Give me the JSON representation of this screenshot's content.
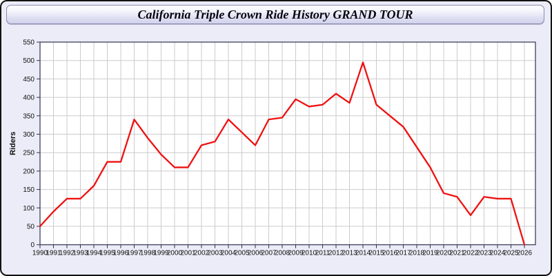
{
  "window": {
    "title": "California Triple Crown Ride History GRAND TOUR"
  },
  "colors": {
    "page_background": "#ECECF8",
    "plot_background": "#FFFFFF",
    "plot_border": "#30304E",
    "gridline": "#CBCBCB",
    "tick_text": "#101010",
    "line": "#EE1111",
    "header_border": "#8A8AB0"
  },
  "chart_data": {
    "type": "line",
    "title": "California Triple Crown Ride History GRAND TOUR",
    "xlabel": "",
    "ylabel": "Riders",
    "ylim": [
      0,
      550
    ],
    "ytick_step": 50,
    "grid": true,
    "legend": false,
    "x": [
      1990,
      1991,
      1992,
      1993,
      1994,
      1995,
      1996,
      1997,
      1998,
      1999,
      2000,
      2001,
      2002,
      2003,
      2004,
      2005,
      2006,
      2007,
      2008,
      2009,
      2010,
      2011,
      2012,
      2013,
      2014,
      2015,
      2016,
      2017,
      2018,
      2019,
      2020,
      2021,
      2022,
      2023,
      2024,
      2025,
      2026
    ],
    "series": [
      {
        "name": "Riders",
        "color": "#EE1111",
        "values": [
          50,
          90,
          125,
          125,
          160,
          225,
          225,
          340,
          290,
          245,
          210,
          210,
          270,
          280,
          340,
          305,
          270,
          340,
          345,
          395,
          375,
          380,
          410,
          385,
          495,
          380,
          350,
          320,
          265,
          210,
          140,
          130,
          80,
          130,
          125,
          125,
          0
        ]
      }
    ]
  }
}
